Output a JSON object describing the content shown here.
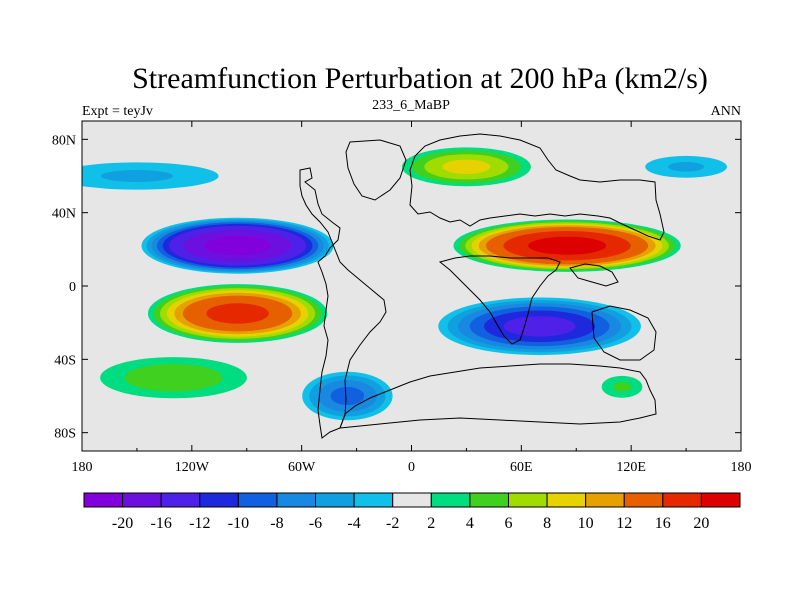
{
  "chart_data": {
    "type": "contour-map",
    "title": "Streamfunction Perturbation at 200 hPa (km2/s)",
    "left_string": "Expt = teyJv",
    "center_string": "233_6_MaBP",
    "right_string": "ANN",
    "x_axis": {
      "range": [
        -180,
        180
      ],
      "ticks": [
        -180,
        -120,
        -60,
        0,
        60,
        120,
        180
      ],
      "tick_labels": [
        "180",
        "120W",
        "60W",
        "0",
        "60E",
        "120E",
        "180"
      ]
    },
    "y_axis": {
      "range": [
        -90,
        90
      ],
      "ticks": [
        80,
        40,
        0,
        -40,
        -80
      ],
      "tick_labels": [
        "80N",
        "40N",
        "0",
        "40S",
        "80S"
      ]
    },
    "contour_levels": [
      -20,
      -16,
      -12,
      -10,
      -8,
      -6,
      -4,
      -2,
      2,
      4,
      6,
      8,
      10,
      12,
      16,
      20
    ],
    "colorbar": {
      "labels": [
        "-20",
        "-16",
        "-12",
        "-10",
        "-8",
        "-6",
        "-4",
        "-2",
        "2",
        "4",
        "6",
        "8",
        "10",
        "12",
        "16",
        "20"
      ],
      "colors": [
        "#8200dc",
        "#6c10e0",
        "#4e20e8",
        "#1e28dc",
        "#1060e0",
        "#1888e0",
        "#10a0e0",
        "#10c0e8",
        "#e6e6e6",
        "#00dc80",
        "#40d020",
        "#a0dc00",
        "#e6d200",
        "#e6a000",
        "#e66000",
        "#e62800",
        "#dc0000"
      ]
    },
    "features": [
      {
        "name": "eastern-pacific-low",
        "lon": -95,
        "lat": 22,
        "lon_half_width": 55,
        "lat_half_width": 16,
        "peak": -20
      },
      {
        "name": "eastern-pacific-south-high",
        "lon": -95,
        "lat": -15,
        "lon_half_width": 52,
        "lat_half_width": 17,
        "peak": 16
      },
      {
        "name": "asia-high",
        "lon": 85,
        "lat": 22,
        "lon_half_width": 65,
        "lat_half_width": 15,
        "peak": 20
      },
      {
        "name": "indian-ocean-south-low",
        "lon": 70,
        "lat": -22,
        "lon_half_width": 60,
        "lat_half_width": 17,
        "peak": -12
      },
      {
        "name": "eurasia-north-high",
        "lon": 30,
        "lat": 65,
        "lon_half_width": 40,
        "lat_half_width": 12,
        "peak": 8
      },
      {
        "name": "south-atlantic-low",
        "lon": -35,
        "lat": -60,
        "lon_half_width": 28,
        "lat_half_width": 15,
        "peak": -8
      },
      {
        "name": "north-pacific-band",
        "lon": -150,
        "lat": 60,
        "lon_half_width": 60,
        "lat_half_width": 10,
        "peak": -4
      },
      {
        "name": "south-pacific-band",
        "lon": -130,
        "lat": -50,
        "lon_half_width": 50,
        "lat_half_width": 14,
        "peak": 5
      },
      {
        "name": "southern-ocean-high",
        "lon": 115,
        "lat": -55,
        "lon_half_width": 15,
        "lat_half_width": 8,
        "peak": 4
      },
      {
        "name": "north-pacific-east-low",
        "lon": 150,
        "lat": 65,
        "lon_half_width": 30,
        "lat_half_width": 8,
        "peak": -4
      }
    ]
  }
}
